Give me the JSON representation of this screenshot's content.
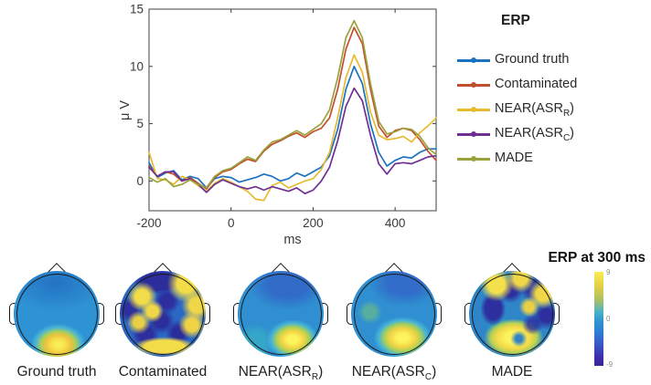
{
  "chart_data": {
    "type": "line",
    "title": "",
    "xlabel": "ms",
    "ylabel": "μ V",
    "xlim": [
      -200,
      500
    ],
    "ylim": [
      -2.6,
      15
    ],
    "xticks": [
      -200,
      0,
      200,
      400
    ],
    "yticks": [
      0,
      5,
      10,
      15
    ],
    "grid": false,
    "legend_title": "ERP",
    "legend_position": "right-outside",
    "x": [
      -200,
      -180,
      -160,
      -140,
      -120,
      -100,
      -80,
      -60,
      -40,
      -20,
      0,
      20,
      40,
      60,
      80,
      100,
      120,
      140,
      160,
      180,
      200,
      220,
      240,
      260,
      280,
      300,
      320,
      340,
      360,
      380,
      400,
      420,
      440,
      460,
      480,
      500
    ],
    "series": [
      {
        "name": "Ground truth",
        "color": "#1c72c2",
        "values": [
          1.6,
          0.3,
          0.7,
          0.9,
          0.1,
          0.4,
          0.2,
          -0.6,
          0.2,
          0.4,
          0.3,
          -0.1,
          0.1,
          0.3,
          0.6,
          0.4,
          0.0,
          0.2,
          0.7,
          0.4,
          0.8,
          1.2,
          2.2,
          4.5,
          8.0,
          10.0,
          8.5,
          5.0,
          2.5,
          1.3,
          1.8,
          2.1,
          2.0,
          2.5,
          2.8,
          2.8
        ]
      },
      {
        "name": "Contaminated",
        "color": "#c24f2b",
        "values": [
          1.3,
          0.4,
          0.8,
          0.6,
          0.0,
          0.3,
          -0.2,
          -0.7,
          0.3,
          0.8,
          1.0,
          1.5,
          1.9,
          1.7,
          2.6,
          3.2,
          3.5,
          3.9,
          4.2,
          3.8,
          4.3,
          4.6,
          5.5,
          8.0,
          11.5,
          13.4,
          12.0,
          8.0,
          4.8,
          3.8,
          4.4,
          4.6,
          4.4,
          3.6,
          2.6,
          1.8
        ]
      },
      {
        "name": "NEAR(ASR_R)",
        "color": "#e8ba2f",
        "values": [
          2.5,
          0.2,
          0.1,
          -0.3,
          0.4,
          0.1,
          -0.4,
          -0.9,
          -0.2,
          0.2,
          -0.1,
          -0.5,
          -0.9,
          -1.6,
          -1.7,
          -0.4,
          -0.1,
          -0.6,
          -0.3,
          0.0,
          0.2,
          1.0,
          2.5,
          5.5,
          9.0,
          11.0,
          9.5,
          6.0,
          4.0,
          3.6,
          3.7,
          3.9,
          3.4,
          4.2,
          4.8,
          5.5
        ]
      },
      {
        "name": "NEAR(ASR_C)",
        "color": "#6f2f93",
        "values": [
          1.2,
          0.4,
          0.8,
          0.8,
          0.0,
          0.2,
          -0.3,
          -1.0,
          -0.3,
          0.1,
          -0.2,
          -0.5,
          -0.7,
          -0.5,
          -0.8,
          -0.5,
          -0.7,
          -0.9,
          -0.6,
          -1.1,
          -0.8,
          0.0,
          1.2,
          3.5,
          6.5,
          8.1,
          7.0,
          4.0,
          1.5,
          0.6,
          1.5,
          1.6,
          1.5,
          1.8,
          2.1,
          2.2
        ]
      },
      {
        "name": "MADE",
        "color": "#9aa23b",
        "values": [
          0.3,
          -0.1,
          0.2,
          -0.5,
          -0.3,
          0.1,
          -0.3,
          -0.6,
          0.4,
          0.9,
          1.1,
          1.6,
          2.1,
          1.8,
          2.7,
          3.4,
          3.6,
          4.0,
          4.4,
          4.0,
          4.5,
          5.0,
          6.2,
          9.0,
          12.5,
          14.0,
          12.5,
          8.5,
          5.2,
          4.1,
          4.3,
          4.6,
          4.5,
          3.9,
          2.9,
          2.3
        ]
      }
    ]
  },
  "legend": {
    "title": "ERP",
    "items": [
      {
        "pre": "Ground truth",
        "sub": "",
        "post": "",
        "color": "#1c72c2"
      },
      {
        "pre": "Contaminated",
        "sub": "",
        "post": "",
        "color": "#c24f2b"
      },
      {
        "pre": "NEAR(ASR",
        "sub": "R",
        "post": ")",
        "color": "#e8ba2f"
      },
      {
        "pre": "NEAR(ASR",
        "sub": "C",
        "post": ")",
        "color": "#6f2f93"
      },
      {
        "pre": "MADE",
        "sub": "",
        "post": "",
        "color": "#9aa23b"
      }
    ]
  },
  "topomaps": {
    "captions": [
      {
        "pre": "Ground truth",
        "sub": "",
        "post": ""
      },
      {
        "pre": "Contaminated",
        "sub": "",
        "post": ""
      },
      {
        "pre": "NEAR(ASR",
        "sub": "R",
        "post": ")"
      },
      {
        "pre": "NEAR(ASR",
        "sub": "C",
        "post": ")"
      },
      {
        "pre": "MADE",
        "sub": "",
        "post": ""
      }
    ],
    "colorbar": {
      "title": "ERP at 300 ms",
      "max": "9",
      "mid": "0",
      "min": "-9"
    }
  }
}
